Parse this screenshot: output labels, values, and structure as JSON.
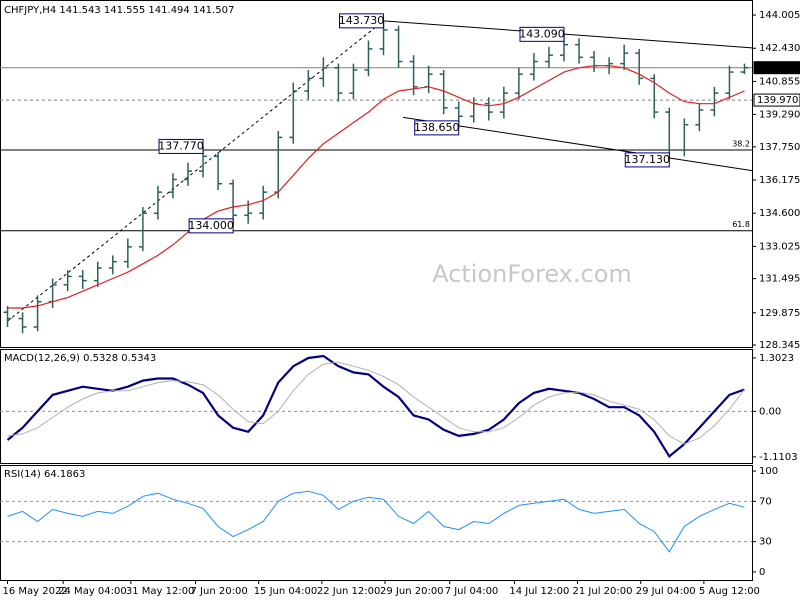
{
  "chart_data": [
    {
      "type": "ohlc",
      "title": "CHFJPY,H4  141.543 141.555 141.494 141.507",
      "watermark": "ActionForex.com",
      "xlim": [
        -0.5,
        49.5
      ],
      "ylim": [
        128.25,
        144.72
      ],
      "color": "#2f5f5f",
      "yticks": [
        {
          "value": 144.005,
          "label": "144.005"
        },
        {
          "value": 142.43,
          "label": "142.430"
        },
        {
          "value": 140.855,
          "label": "140.855"
        },
        {
          "value": 139.29,
          "label": "139.290"
        },
        {
          "value": 137.75,
          "label": "137.750"
        },
        {
          "value": 136.175,
          "label": "136.175"
        },
        {
          "value": 134.6,
          "label": "134.600"
        },
        {
          "value": 133.025,
          "label": "133.025"
        },
        {
          "value": 131.495,
          "label": "131.495"
        },
        {
          "value": 129.875,
          "label": "129.875"
        },
        {
          "value": 128.345,
          "label": "128.345"
        }
      ],
      "open": [
        129.9,
        129.6,
        129.2,
        130.4,
        131.2,
        131.6,
        131.4,
        132.0,
        132.3,
        133.0,
        134.6,
        135.6,
        136.2,
        136.6,
        137.3,
        136.0,
        134.5,
        134.6,
        135.6,
        138.2,
        140.4,
        141.0,
        141.5,
        140.3,
        141.4,
        142.4,
        143.3,
        141.8,
        140.6,
        141.2,
        139.6,
        139.2,
        139.8,
        139.4,
        140.3,
        141.2,
        141.8,
        142.1,
        142.6,
        142.0,
        141.6,
        141.7,
        142.2,
        141.0,
        139.4,
        137.6,
        138.8,
        139.5,
        140.3,
        141.3
      ],
      "high": [
        130.2,
        129.9,
        130.7,
        131.5,
        131.9,
        131.9,
        132.3,
        132.6,
        133.4,
        134.9,
        135.9,
        136.5,
        137.0,
        137.77,
        137.5,
        136.2,
        135.2,
        135.9,
        138.5,
        140.8,
        141.4,
        142.0,
        141.7,
        141.7,
        142.8,
        143.73,
        143.5,
        142.1,
        141.6,
        141.4,
        139.9,
        140.1,
        140.1,
        140.6,
        141.5,
        142.2,
        142.5,
        143.09,
        142.9,
        142.3,
        142.0,
        142.6,
        142.4,
        141.2,
        139.6,
        139.1,
        139.8,
        140.6,
        141.6,
        141.7
      ],
      "low": [
        129.2,
        128.9,
        129.0,
        130.1,
        130.9,
        131.0,
        131.1,
        131.7,
        132.0,
        132.8,
        134.3,
        135.3,
        135.9,
        136.3,
        135.7,
        134.0,
        134.1,
        134.3,
        135.3,
        137.9,
        140.0,
        140.6,
        139.9,
        140.0,
        141.1,
        142.1,
        141.5,
        140.2,
        140.3,
        139.3,
        138.65,
        138.9,
        139.0,
        139.1,
        140.0,
        140.9,
        141.5,
        141.8,
        141.7,
        141.3,
        141.2,
        141.4,
        140.7,
        139.1,
        137.13,
        137.3,
        138.5,
        139.2,
        140.0,
        141.2
      ],
      "close": [
        129.6,
        129.2,
        130.4,
        131.2,
        131.6,
        131.4,
        132.0,
        132.3,
        133.0,
        134.6,
        135.6,
        136.2,
        136.6,
        137.3,
        136.0,
        134.5,
        134.6,
        135.6,
        138.2,
        140.4,
        141.0,
        141.5,
        140.3,
        141.4,
        142.4,
        143.3,
        141.8,
        140.6,
        141.2,
        139.6,
        139.2,
        139.8,
        139.4,
        140.3,
        141.2,
        141.8,
        142.1,
        142.6,
        142.0,
        141.6,
        141.7,
        142.2,
        141.0,
        139.4,
        137.6,
        138.8,
        139.5,
        140.3,
        141.3,
        141.507
      ],
      "overlays": [
        {
          "color": "#e02020",
          "values": [
            130.1,
            130.1,
            130.2,
            130.4,
            130.6,
            130.9,
            131.2,
            131.5,
            131.8,
            132.2,
            132.6,
            133.1,
            133.7,
            134.3,
            134.7,
            134.9,
            135.0,
            135.2,
            135.6,
            136.4,
            137.2,
            137.9,
            138.4,
            138.9,
            139.4,
            140.0,
            140.4,
            140.5,
            140.6,
            140.4,
            140.1,
            139.8,
            139.7,
            139.8,
            140.1,
            140.5,
            140.9,
            141.3,
            141.5,
            141.6,
            141.6,
            141.5,
            141.2,
            140.8,
            140.3,
            139.9,
            139.8,
            139.8,
            140.1,
            140.4
          ]
        }
      ],
      "levels": [
        {
          "value": 141.507,
          "label": "141.507",
          "style": "solid",
          "box": "dark"
        },
        {
          "value": 139.97,
          "label": "139.970",
          "style": "dashed",
          "box": "light"
        }
      ],
      "fib_levels": [
        {
          "value": 137.6,
          "label": "38.2"
        },
        {
          "value": 133.77,
          "label": "61.8"
        }
      ],
      "annotations": [
        {
          "x": 25,
          "value": 143.73,
          "label": "143.730"
        },
        {
          "x": 13,
          "value": 137.77,
          "label": "137.770"
        },
        {
          "x": 15,
          "value": 134.0,
          "label": "134.000"
        },
        {
          "x": 30,
          "value": 138.65,
          "label": "138.650"
        },
        {
          "x": 37,
          "value": 143.09,
          "label": "143.090"
        },
        {
          "x": 44,
          "value": 137.13,
          "label": "137.130"
        }
      ],
      "trendlines": [
        {
          "from": [
            25,
            143.73
          ],
          "to": [
            49.5,
            142.45
          ],
          "style": "solid"
        },
        {
          "from": [
            26.3,
            139.15
          ],
          "to": [
            49.5,
            136.62
          ],
          "style": "solid"
        },
        {
          "from": [
            0,
            129.48
          ],
          "to": [
            25,
            143.73
          ],
          "style": "dashed"
        }
      ]
    },
    {
      "type": "line",
      "title": "MACD(12,26,9) 0.5328 0.5343",
      "xlim": [
        -0.5,
        49.5
      ],
      "ylim": [
        -1.26,
        1.52
      ],
      "yticks": [
        1.3023,
        {
          "value": 0,
          "label": "0.00"
        },
        -1.1103
      ],
      "levels": [
        0
      ],
      "series": [
        {
          "color": "#000080",
          "width": 2.2,
          "values": [
            -0.7,
            -0.4,
            0.0,
            0.4,
            0.5,
            0.6,
            0.55,
            0.5,
            0.6,
            0.75,
            0.8,
            0.8,
            0.65,
            0.45,
            -0.1,
            -0.4,
            -0.5,
            -0.1,
            0.7,
            1.1,
            1.3,
            1.35,
            1.1,
            0.95,
            0.9,
            0.6,
            0.35,
            -0.1,
            -0.2,
            -0.45,
            -0.6,
            -0.55,
            -0.45,
            -0.2,
            0.2,
            0.45,
            0.55,
            0.5,
            0.45,
            0.3,
            0.1,
            0.1,
            -0.1,
            -0.5,
            -1.1,
            -0.8,
            -0.4,
            0.0,
            0.4,
            0.5328
          ]
        },
        {
          "color": "#b0b0b0",
          "width": 1,
          "values": [
            -0.6,
            -0.55,
            -0.4,
            -0.15,
            0.1,
            0.3,
            0.45,
            0.5,
            0.5,
            0.6,
            0.7,
            0.75,
            0.72,
            0.65,
            0.4,
            0.05,
            -0.25,
            -0.3,
            0.0,
            0.5,
            0.9,
            1.15,
            1.2,
            1.1,
            1.0,
            0.85,
            0.65,
            0.35,
            0.1,
            -0.15,
            -0.4,
            -0.5,
            -0.5,
            -0.4,
            -0.15,
            0.15,
            0.35,
            0.45,
            0.47,
            0.4,
            0.25,
            0.15,
            0.05,
            -0.2,
            -0.6,
            -0.8,
            -0.65,
            -0.35,
            0.05,
            0.5343
          ]
        }
      ]
    },
    {
      "type": "line",
      "title": "RSI(14) 64.1863",
      "xlim": [
        -0.5,
        49.5
      ],
      "ylim": [
        -8,
        106
      ],
      "yticks": [
        100,
        70,
        30,
        0
      ],
      "levels": [
        70,
        30
      ],
      "series": [
        {
          "color": "#1e90ff",
          "width": 1,
          "values": [
            55,
            60,
            50,
            62,
            58,
            55,
            60,
            58,
            65,
            75,
            78,
            72,
            68,
            63,
            45,
            35,
            42,
            50,
            70,
            78,
            80,
            76,
            62,
            70,
            74,
            72,
            55,
            48,
            60,
            45,
            42,
            50,
            48,
            58,
            66,
            68,
            70,
            72,
            62,
            58,
            60,
            62,
            48,
            40,
            20,
            45,
            55,
            62,
            68,
            64.1863
          ]
        }
      ],
      "xticks": [
        {
          "value": 0,
          "label": "16 May 2022"
        },
        {
          "value": 3.7,
          "label": "24 May 04:00"
        },
        {
          "value": 8.2,
          "label": "31 May 12:00"
        },
        {
          "value": 12.5,
          "label": "7 Jun 20:00"
        },
        {
          "value": 16.7,
          "label": "15 Jun 04:00"
        },
        {
          "value": 20.9,
          "label": "22 Jun 12:00"
        },
        {
          "value": 25.1,
          "label": "29 Jun 20:00"
        },
        {
          "value": 29.4,
          "label": "7 Jul 04:00"
        },
        {
          "value": 33.7,
          "label": "14 Jul 12:00"
        },
        {
          "value": 37.9,
          "label": "21 Jul 20:00"
        },
        {
          "value": 42.1,
          "label": "29 Jul 04:00"
        },
        {
          "value": 46.3,
          "label": "5 Aug 12:00"
        }
      ]
    }
  ]
}
